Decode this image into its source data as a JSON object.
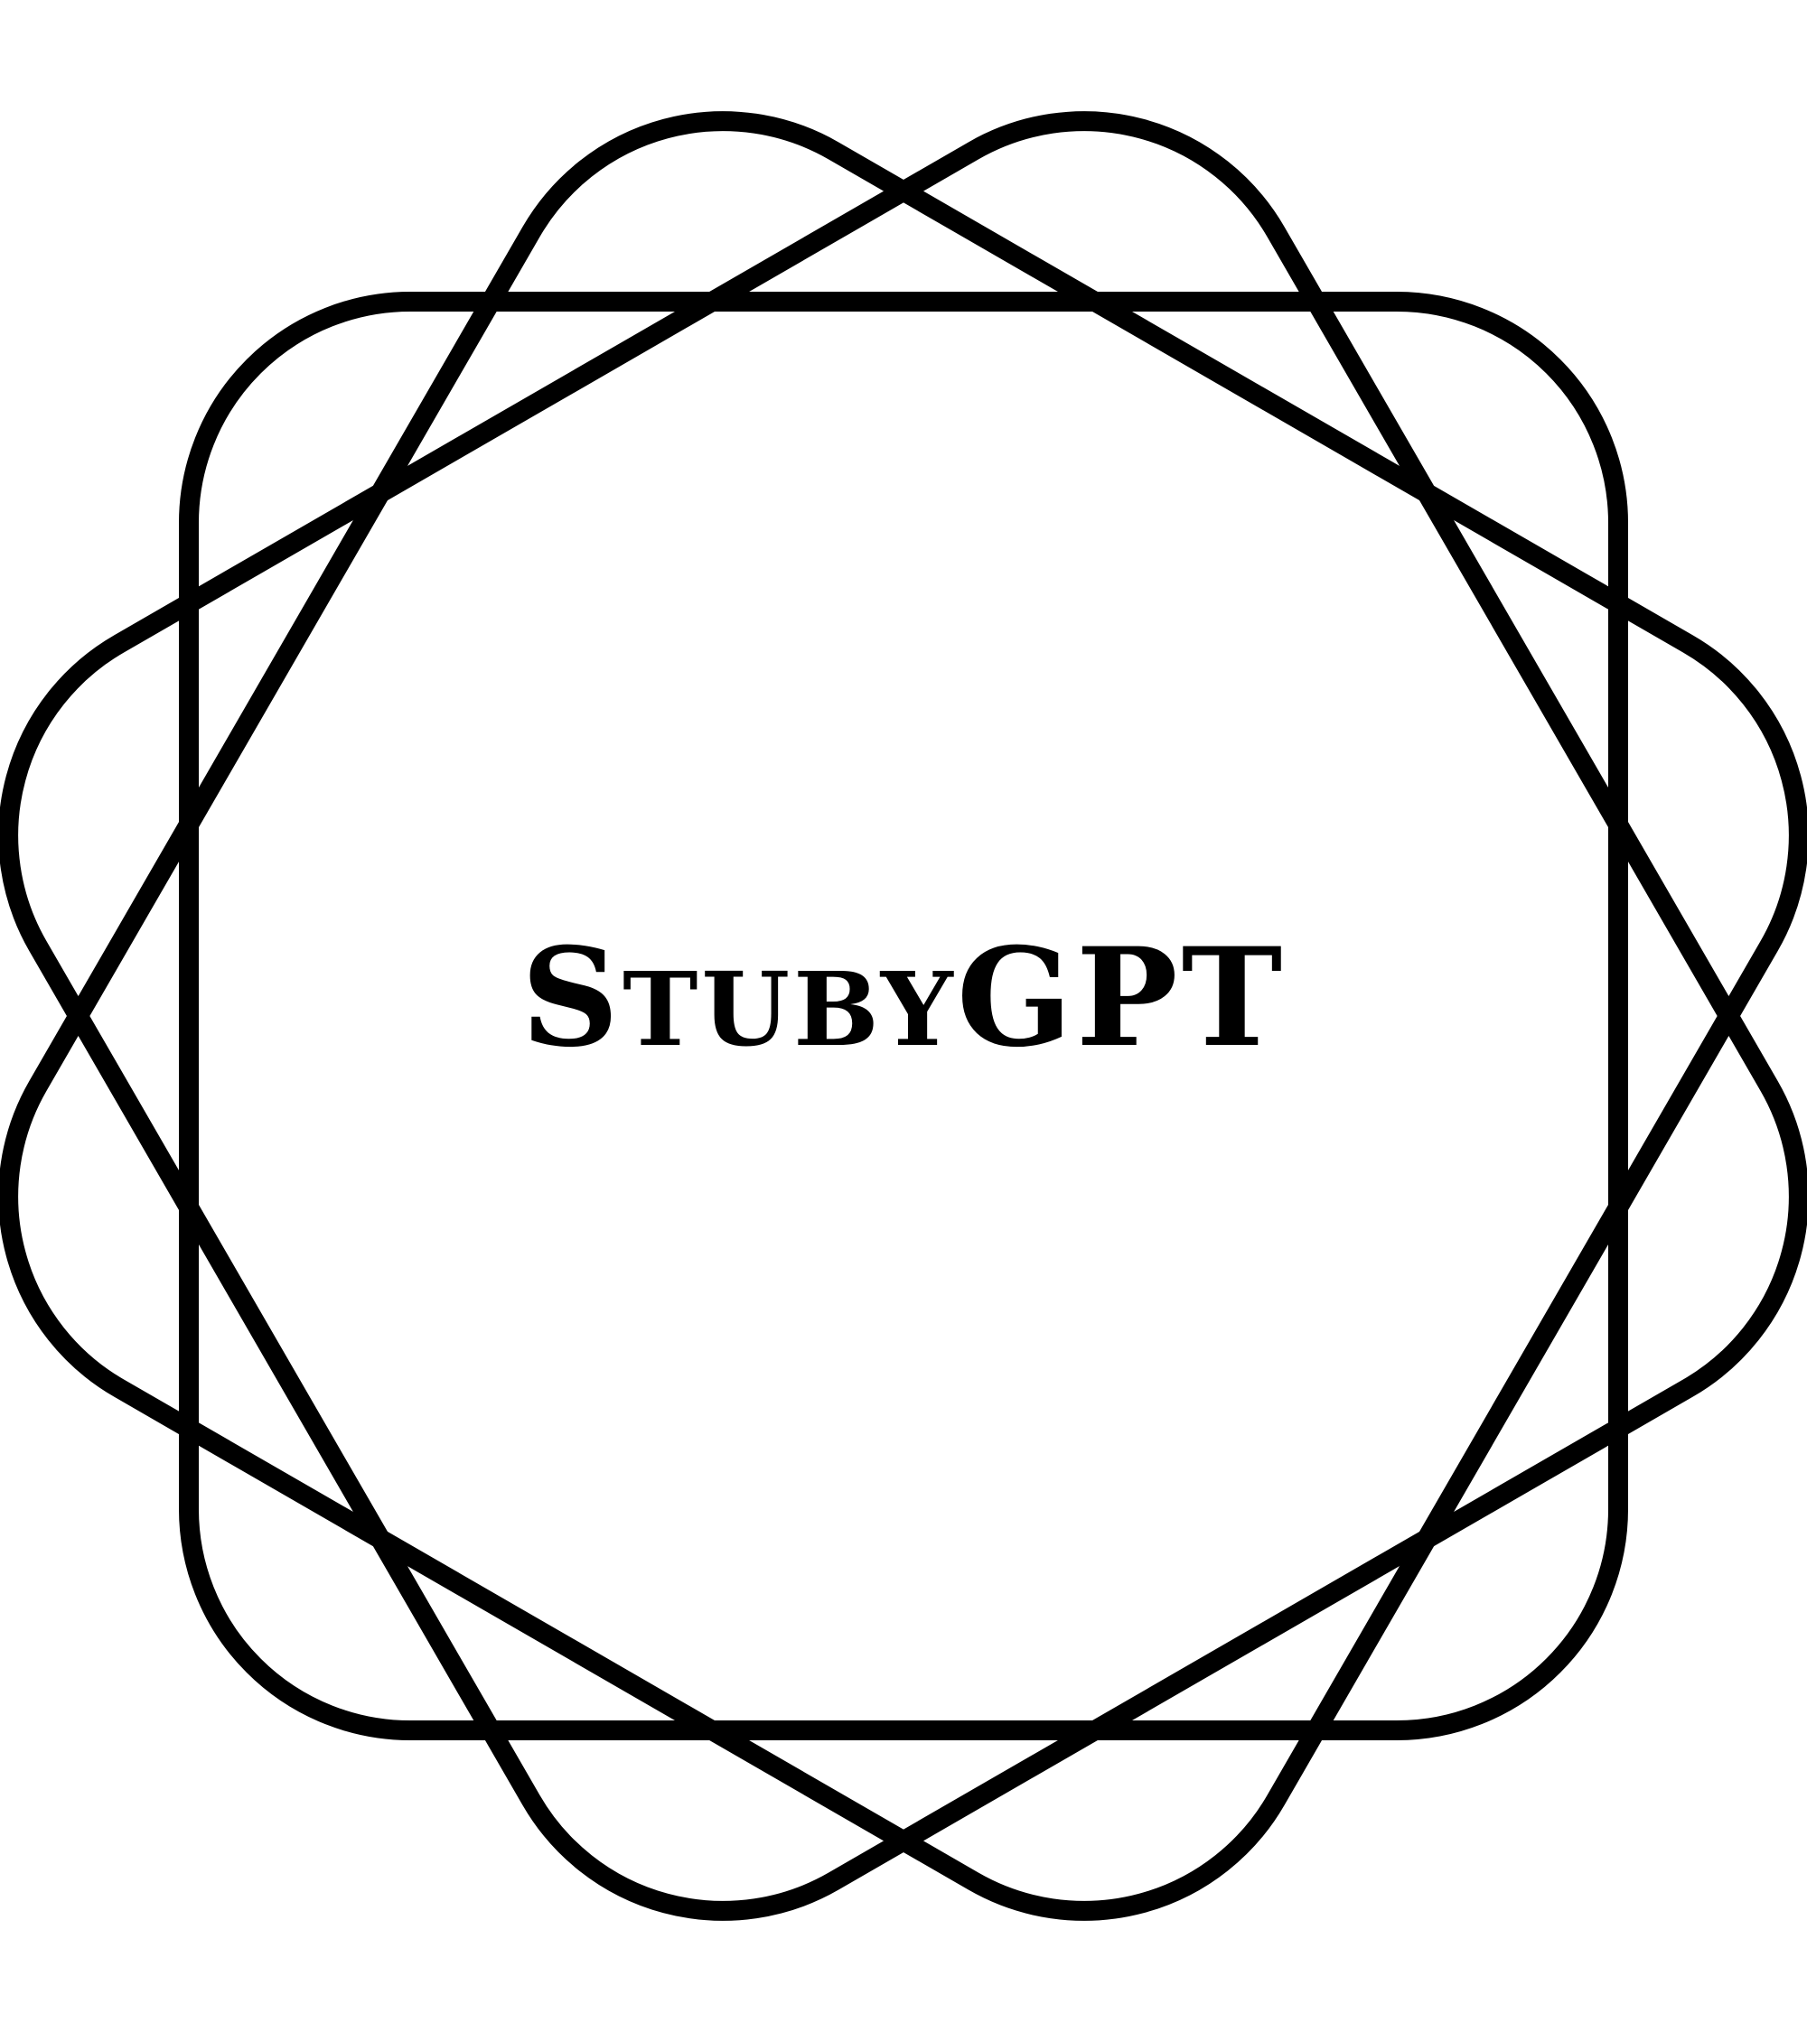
{
  "logo": {
    "wordmark": "StubyGPT",
    "stroke_color": "#000000",
    "background_color": "#ffffff",
    "text_color": "#000000",
    "emblem_shape": "three-rotated-rounded-squares"
  }
}
